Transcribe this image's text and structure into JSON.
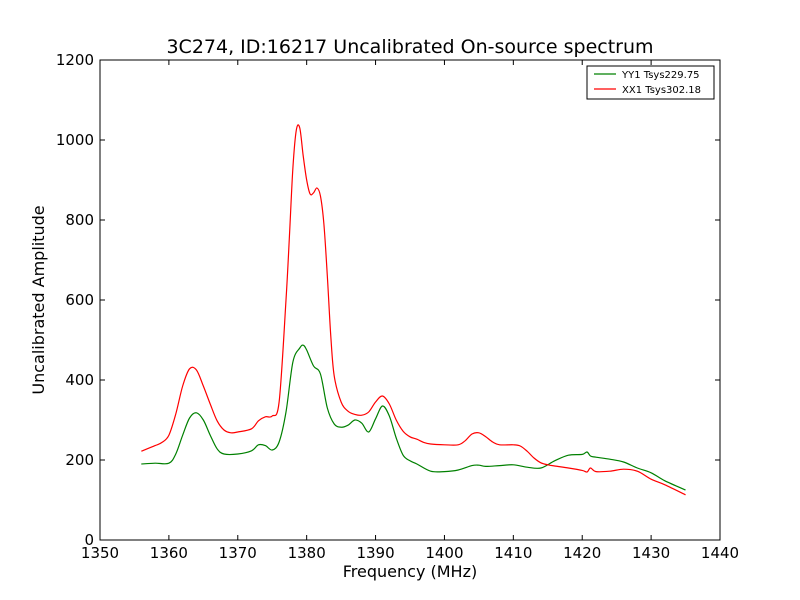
{
  "chart_data": {
    "type": "line",
    "title": "3C274, ID:16217 Uncalibrated On-source spectrum",
    "xlabel": "Frequency (MHz)",
    "ylabel": "Uncalibrated Amplitude",
    "xlim": [
      1350,
      1440
    ],
    "ylim": [
      0,
      1200
    ],
    "xticks": [
      "1350",
      "1360",
      "1370",
      "1380",
      "1390",
      "1400",
      "1410",
      "1420",
      "1430",
      "1440"
    ],
    "yticks": [
      "0",
      "200",
      "400",
      "600",
      "800",
      "1000",
      "1200"
    ],
    "grid": false,
    "legend_position": "top-right",
    "series": [
      {
        "name": "YY1 Tsys229.75",
        "color": "#008000",
        "x": [
          1356,
          1358,
          1360,
          1361,
          1362,
          1363,
          1364,
          1365,
          1366,
          1367,
          1368,
          1370,
          1372,
          1373,
          1374,
          1375,
          1376,
          1377,
          1378,
          1379,
          1379.5,
          1380,
          1381,
          1382,
          1383,
          1384,
          1385,
          1386,
          1387,
          1388,
          1389,
          1390,
          1391,
          1392,
          1393,
          1394,
          1395,
          1396,
          1398,
          1400,
          1402,
          1404,
          1405,
          1406,
          1408,
          1410,
          1412,
          1414,
          1416,
          1418,
          1420,
          1420.7,
          1421.2,
          1422,
          1424,
          1426,
          1428,
          1430,
          1432,
          1435
        ],
        "values": [
          190,
          192,
          192,
          215,
          262,
          305,
          318,
          300,
          262,
          228,
          215,
          215,
          223,
          238,
          236,
          225,
          245,
          320,
          445,
          480,
          487,
          475,
          435,
          415,
          330,
          290,
          282,
          287,
          300,
          292,
          270,
          303,
          335,
          310,
          255,
          212,
          198,
          190,
          172,
          171,
          175,
          186,
          187,
          184,
          186,
          188,
          182,
          180,
          198,
          212,
          214,
          220,
          210,
          207,
          202,
          195,
          180,
          168,
          148,
          125
        ]
      },
      {
        "name": "XX1 Tsys302.18",
        "color": "#ff0000",
        "x": [
          1356,
          1358,
          1359,
          1360,
          1361,
          1362,
          1363,
          1364,
          1365,
          1366,
          1367,
          1368,
          1369,
          1370,
          1372,
          1373,
          1374,
          1375,
          1376,
          1377,
          1377.5,
          1378,
          1378.5,
          1379,
          1379.5,
          1380,
          1380.5,
          1381,
          1381.5,
          1382,
          1382.5,
          1383,
          1383.5,
          1384,
          1385,
          1386,
          1387,
          1388,
          1389,
          1390,
          1391,
          1392,
          1393,
          1394,
          1395,
          1396,
          1397,
          1398,
          1400,
          1402,
          1403,
          1404,
          1405,
          1406,
          1407,
          1408,
          1410,
          1411,
          1412,
          1413,
          1414,
          1415,
          1416,
          1418,
          1420,
          1420.7,
          1421.2,
          1422,
          1424,
          1426,
          1428,
          1430,
          1432,
          1435
        ],
        "values": [
          222,
          236,
          244,
          262,
          315,
          385,
          428,
          425,
          385,
          340,
          298,
          275,
          268,
          270,
          278,
          298,
          308,
          310,
          345,
          600,
          760,
          930,
          1025,
          1030,
          960,
          900,
          865,
          868,
          880,
          860,
          790,
          660,
          510,
          410,
          345,
          322,
          314,
          312,
          320,
          345,
          360,
          340,
          300,
          272,
          258,
          252,
          244,
          240,
          238,
          238,
          248,
          265,
          268,
          258,
          245,
          238,
          238,
          235,
          222,
          205,
          193,
          188,
          185,
          180,
          174,
          170,
          180,
          171,
          172,
          177,
          172,
          152,
          138,
          113
        ]
      }
    ]
  }
}
